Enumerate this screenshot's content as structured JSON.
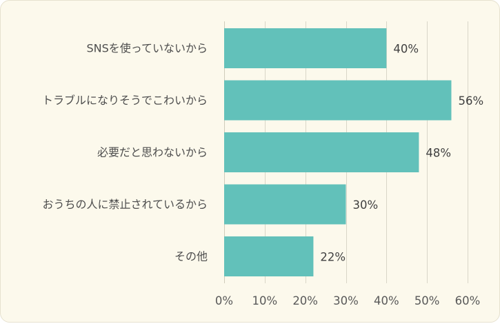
{
  "chart_data": {
    "type": "bar",
    "orientation": "horizontal",
    "categories": [
      "SNSを使っていないから",
      "トラブルになりそうでこわいから",
      "必要だと思わないから",
      "おうちの人に禁止されているから",
      "その他"
    ],
    "values": [
      40,
      56,
      48,
      30,
      22
    ],
    "value_labels": [
      "40%",
      "56%",
      "48%",
      "30%",
      "22%"
    ],
    "xlim": [
      0,
      60
    ],
    "x_ticks": [
      0,
      10,
      20,
      30,
      40,
      50,
      60
    ],
    "x_tick_labels": [
      "0%",
      "10%",
      "20%",
      "30%",
      "40%",
      "50%",
      "60%"
    ],
    "grid": "vertical",
    "bar_color": "#62c1ba",
    "background_color": "#fcf9ec"
  }
}
